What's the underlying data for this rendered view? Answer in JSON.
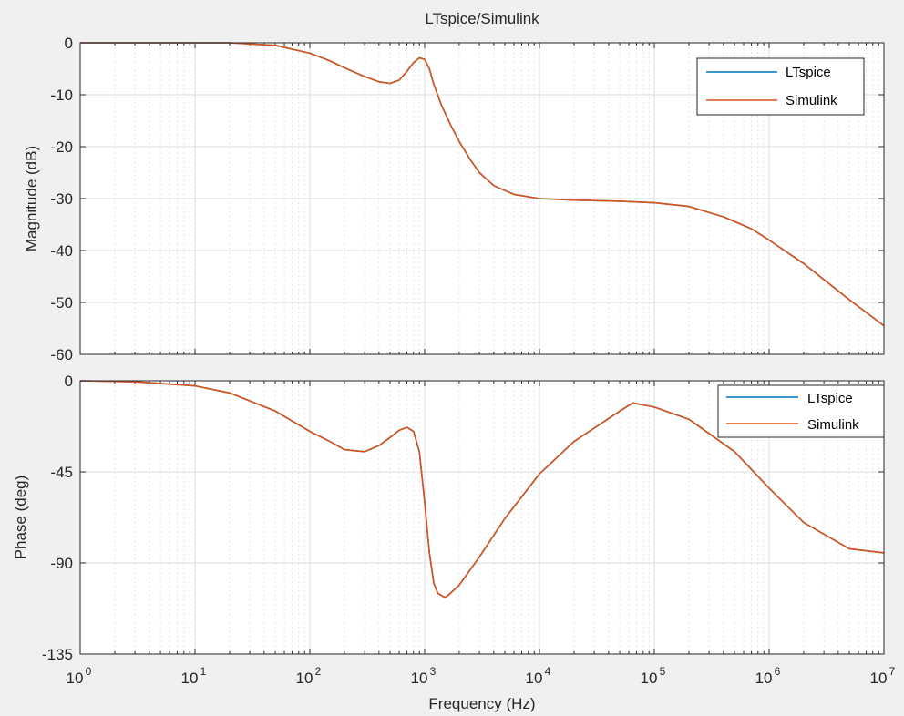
{
  "title": "LTspice/Simulink",
  "xlabel": "Frequency  (Hz)",
  "colors": {
    "ltspice": "#0072bd",
    "simulink": "#d95319",
    "grid": "#dcdcdc",
    "axis": "#262626"
  },
  "x_tick_labels": [
    {
      "base": "10",
      "exp": "0"
    },
    {
      "base": "10",
      "exp": "1"
    },
    {
      "base": "10",
      "exp": "2"
    },
    {
      "base": "10",
      "exp": "3"
    },
    {
      "base": "10",
      "exp": "4"
    },
    {
      "base": "10",
      "exp": "5"
    },
    {
      "base": "10",
      "exp": "6"
    },
    {
      "base": "10",
      "exp": "7"
    }
  ],
  "chart_data": [
    {
      "type": "line",
      "xscale": "log",
      "xlim": [
        1,
        10000000
      ],
      "ylim": [
        -60,
        0
      ],
      "ylabel": "Magnitude (dB)",
      "yticks": [
        "0",
        "-10",
        "-20",
        "-30",
        "-40",
        "-50",
        "-60"
      ],
      "grid": true,
      "legend_position": "top-right",
      "series": [
        {
          "name": "LTspice",
          "x": [
            1,
            3,
            10,
            20,
            50,
            100,
            150,
            200,
            300,
            400,
            500,
            600,
            700,
            800,
            900,
            1000,
            1100,
            1200,
            1400,
            1700,
            2000,
            2500,
            3000,
            4000,
            6000,
            10000,
            20000,
            50000,
            100000,
            200000,
            400000,
            700000,
            1000000,
            2000000,
            5000000,
            10000000
          ],
          "y": [
            0,
            0,
            0,
            0,
            -0.5,
            -2,
            -3.5,
            -4.8,
            -6.5,
            -7.5,
            -7.8,
            -7.2,
            -5.5,
            -3.8,
            -2.9,
            -3.2,
            -5,
            -8,
            -12,
            -16,
            -19,
            -22.5,
            -25,
            -27.5,
            -29.2,
            -30,
            -30.3,
            -30.5,
            -30.8,
            -31.5,
            -33.5,
            -35.8,
            -38,
            -42.5,
            -49.5,
            -54.5
          ]
        },
        {
          "name": "Simulink",
          "x": [
            1,
            3,
            10,
            20,
            50,
            100,
            150,
            200,
            300,
            400,
            500,
            600,
            700,
            800,
            900,
            1000,
            1100,
            1200,
            1400,
            1700,
            2000,
            2500,
            3000,
            4000,
            6000,
            10000,
            20000,
            50000,
            100000,
            200000,
            400000,
            700000,
            1000000,
            2000000,
            5000000,
            10000000
          ],
          "y": [
            0,
            0,
            0,
            0,
            -0.5,
            -2,
            -3.5,
            -4.8,
            -6.5,
            -7.5,
            -7.8,
            -7.2,
            -5.5,
            -3.8,
            -2.9,
            -3.2,
            -5,
            -8,
            -12,
            -16,
            -19,
            -22.5,
            -25,
            -27.5,
            -29.2,
            -30,
            -30.3,
            -30.5,
            -30.8,
            -31.5,
            -33.5,
            -35.8,
            -38,
            -42.5,
            -49.5,
            -54.5
          ]
        }
      ]
    },
    {
      "type": "line",
      "xscale": "log",
      "xlim": [
        1,
        10000000
      ],
      "ylim": [
        -135,
        0
      ],
      "ylabel": "Phase (deg)",
      "yticks": [
        "0",
        "-45",
        "-90",
        "-135"
      ],
      "grid": true,
      "legend_position": "top-right",
      "series": [
        {
          "name": "LTspice",
          "x": [
            1,
            3,
            10,
            20,
            50,
            100,
            150,
            200,
            300,
            400,
            500,
            600,
            700,
            800,
            900,
            1000,
            1100,
            1200,
            1300,
            1500,
            1600,
            2000,
            3000,
            5000,
            10000,
            20000,
            50000,
            65000,
            100000,
            200000,
            500000,
            1000000,
            2000000,
            5000000,
            10000000
          ],
          "y": [
            0,
            -0.5,
            -2.5,
            -6,
            -15,
            -25,
            -30,
            -34,
            -35,
            -32,
            -28,
            -24.5,
            -23,
            -25,
            -35,
            -60,
            -85,
            -100,
            -105,
            -107,
            -106,
            -101,
            -87,
            -68,
            -46,
            -30,
            -15,
            -11,
            -13,
            -19,
            -35,
            -53,
            -70,
            -83,
            -85
          ]
        },
        {
          "name": "Simulink",
          "x": [
            1,
            3,
            10,
            20,
            50,
            100,
            150,
            200,
            300,
            400,
            500,
            600,
            700,
            800,
            900,
            1000,
            1100,
            1200,
            1300,
            1500,
            1600,
            2000,
            3000,
            5000,
            10000,
            20000,
            50000,
            65000,
            100000,
            200000,
            500000,
            1000000,
            2000000,
            5000000,
            10000000
          ],
          "y": [
            0,
            -0.5,
            -2.5,
            -6,
            -15,
            -25,
            -30,
            -34,
            -35,
            -32,
            -28,
            -24.5,
            -23,
            -25,
            -35,
            -60,
            -85,
            -100,
            -105,
            -107,
            -106,
            -101,
            -87,
            -68,
            -46,
            -30,
            -15,
            -11,
            -13,
            -19,
            -35,
            -53,
            -70,
            -83,
            -85
          ]
        }
      ]
    }
  ]
}
